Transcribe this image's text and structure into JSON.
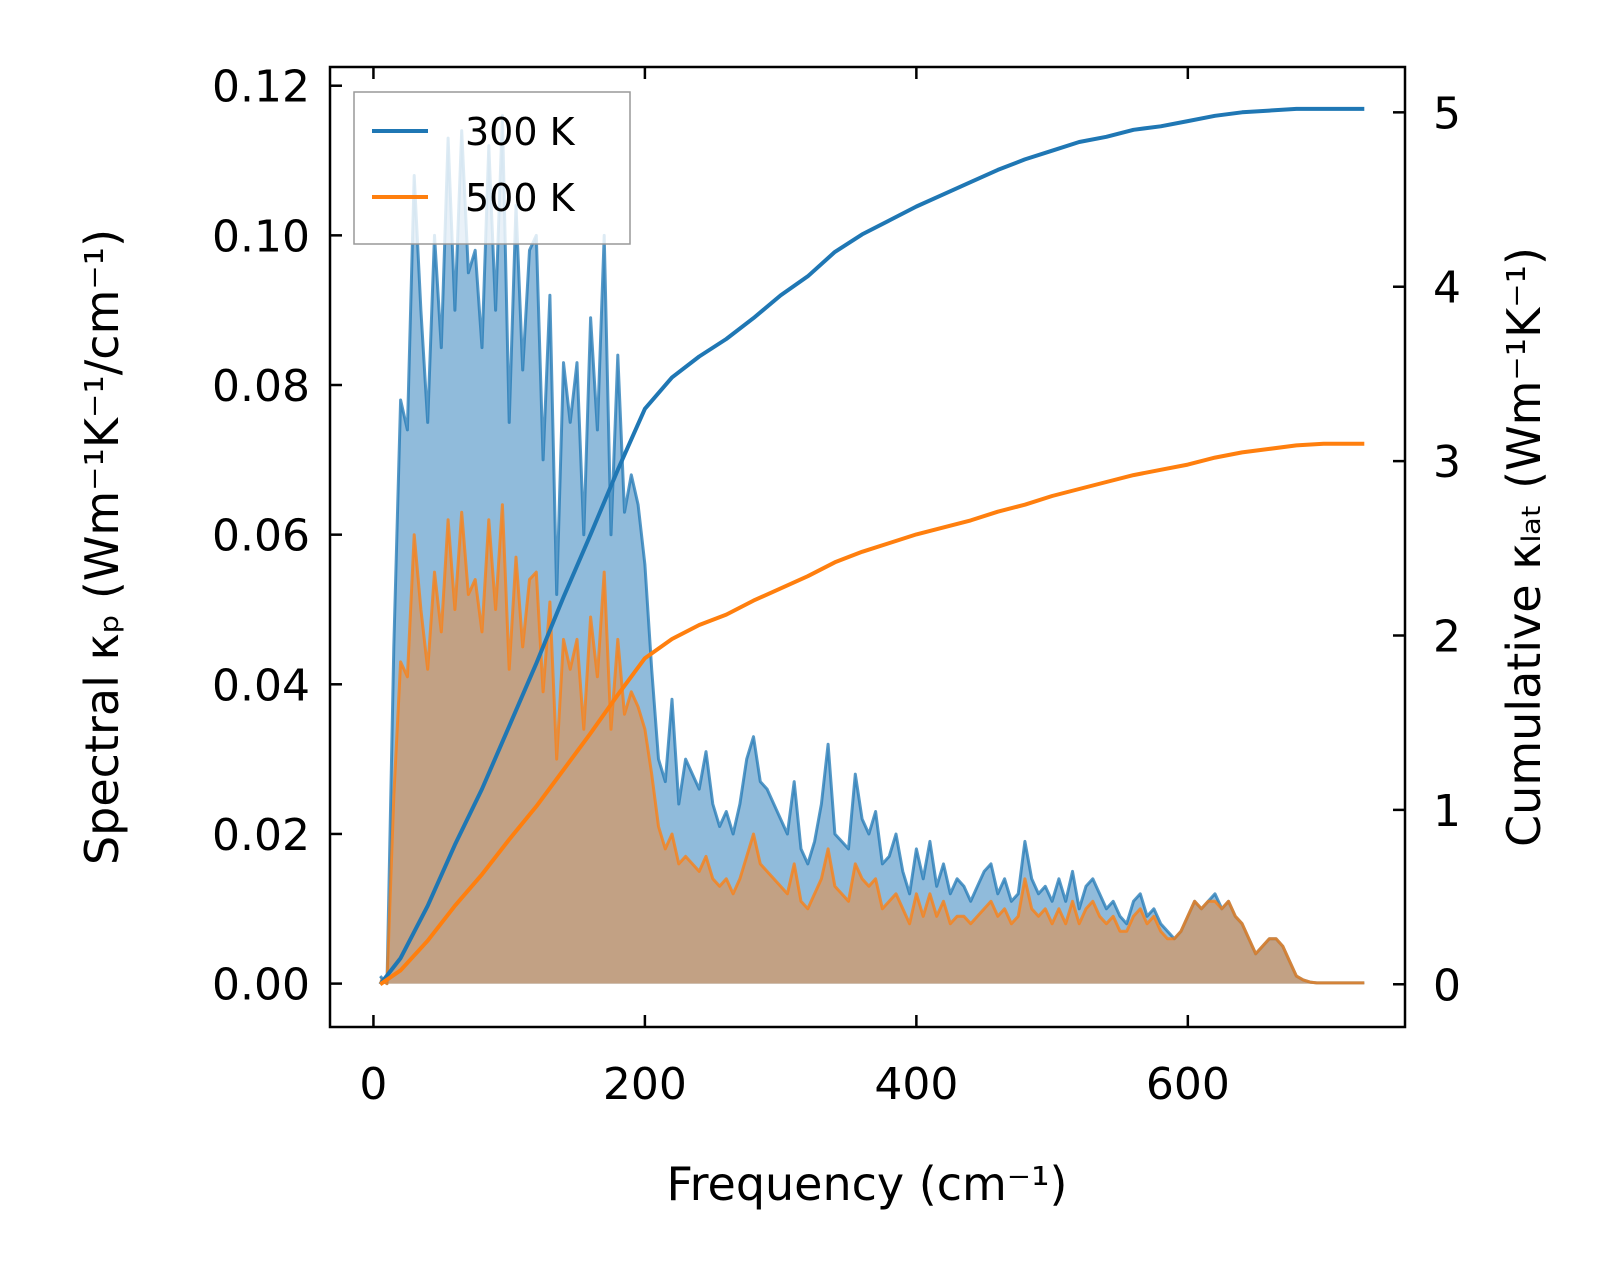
{
  "chart_data": {
    "type": "line",
    "xlabel": "Frequency (cm⁻¹)",
    "ylabel_left": "Spectral κₚ (Wm⁻¹K⁻¹/cm⁻¹)",
    "ylabel_right": "Cumulative κₗₐₜ (Wm⁻¹K⁻¹)",
    "xlim": [
      -32,
      760
    ],
    "ylim_left": [
      -0.0058,
      0.1225
    ],
    "ylim_right": [
      -0.245,
      5.26
    ],
    "x_ticks": [
      0,
      200,
      400,
      600
    ],
    "x_tick_labels": [
      "0",
      "200",
      "400",
      "600"
    ],
    "y_left_ticks": [
      0,
      0.02,
      0.04,
      0.06,
      0.08,
      0.1,
      0.12
    ],
    "y_left_tick_labels": [
      "0.00",
      "0.02",
      "0.04",
      "0.06",
      "0.08",
      "0.10",
      "0.12"
    ],
    "y_right_ticks": [
      0,
      1,
      2,
      3,
      4,
      5
    ],
    "y_right_tick_labels": [
      "0",
      "1",
      "2",
      "3",
      "4",
      "5"
    ],
    "legend": {
      "position": "upper-left",
      "entries": [
        "300 K",
        "500 K"
      ]
    },
    "colors": {
      "300K": "#1f77b4",
      "500K": "#ff7f0e",
      "fill_300K": "#8ab7d9",
      "fill_500K": "#c89f7a"
    },
    "series": [
      {
        "name": "300 K",
        "kind": "spectral",
        "x": [
          5,
          10,
          15,
          20,
          25,
          30,
          35,
          40,
          45,
          50,
          55,
          60,
          65,
          70,
          75,
          80,
          85,
          90,
          95,
          100,
          105,
          110,
          115,
          120,
          125,
          130,
          135,
          140,
          145,
          150,
          155,
          160,
          165,
          170,
          175,
          180,
          185,
          190,
          195,
          200,
          205,
          210,
          215,
          220,
          225,
          230,
          235,
          240,
          245,
          250,
          255,
          260,
          265,
          270,
          275,
          280,
          285,
          290,
          295,
          300,
          305,
          310,
          315,
          320,
          325,
          330,
          335,
          340,
          345,
          350,
          355,
          360,
          365,
          370,
          375,
          380,
          385,
          390,
          395,
          400,
          405,
          410,
          415,
          420,
          425,
          430,
          435,
          440,
          445,
          450,
          455,
          460,
          465,
          470,
          475,
          480,
          485,
          490,
          495,
          500,
          505,
          510,
          515,
          520,
          525,
          530,
          535,
          540,
          545,
          550,
          555,
          560,
          565,
          570,
          575,
          580,
          585,
          590,
          595,
          600,
          605,
          610,
          615,
          620,
          625,
          630,
          635,
          640,
          645,
          650,
          655,
          660,
          665,
          670,
          675,
          680,
          685,
          690,
          695,
          700,
          705,
          710,
          715,
          720,
          725,
          730
        ],
        "values": [
          0.001,
          0.0,
          0.045,
          0.078,
          0.074,
          0.108,
          0.09,
          0.075,
          0.1,
          0.085,
          0.113,
          0.09,
          0.114,
          0.095,
          0.098,
          0.085,
          0.112,
          0.09,
          0.116,
          0.075,
          0.104,
          0.082,
          0.098,
          0.1,
          0.07,
          0.092,
          0.052,
          0.083,
          0.075,
          0.083,
          0.06,
          0.089,
          0.074,
          0.1,
          0.06,
          0.084,
          0.063,
          0.068,
          0.064,
          0.056,
          0.042,
          0.03,
          0.027,
          0.038,
          0.024,
          0.03,
          0.028,
          0.026,
          0.031,
          0.024,
          0.021,
          0.023,
          0.02,
          0.024,
          0.03,
          0.033,
          0.027,
          0.026,
          0.024,
          0.022,
          0.02,
          0.027,
          0.018,
          0.016,
          0.019,
          0.024,
          0.032,
          0.02,
          0.019,
          0.018,
          0.028,
          0.022,
          0.02,
          0.023,
          0.016,
          0.017,
          0.02,
          0.015,
          0.012,
          0.018,
          0.014,
          0.019,
          0.013,
          0.016,
          0.012,
          0.014,
          0.013,
          0.011,
          0.013,
          0.015,
          0.016,
          0.012,
          0.014,
          0.011,
          0.012,
          0.019,
          0.014,
          0.012,
          0.013,
          0.011,
          0.014,
          0.011,
          0.015,
          0.01,
          0.013,
          0.014,
          0.012,
          0.01,
          0.011,
          0.009,
          0.008,
          0.011,
          0.012,
          0.009,
          0.01,
          0.008,
          0.007,
          0.006,
          0.007,
          0.009,
          0.011,
          0.01,
          0.011,
          0.012,
          0.01,
          0.011,
          0.009,
          0.008,
          0.006,
          0.004,
          0.005,
          0.006,
          0.006,
          0.005,
          0.003,
          0.001,
          0.0005,
          0.0002,
          0.0001,
          0.0001,
          0.0001,
          0.0001,
          0.0001,
          0.0001,
          0.0001,
          0.0001
        ]
      },
      {
        "name": "500 K",
        "kind": "spectral",
        "x": [
          5,
          10,
          15,
          20,
          25,
          30,
          35,
          40,
          45,
          50,
          55,
          60,
          65,
          70,
          75,
          80,
          85,
          90,
          95,
          100,
          105,
          110,
          115,
          120,
          125,
          130,
          135,
          140,
          145,
          150,
          155,
          160,
          165,
          170,
          175,
          180,
          185,
          190,
          195,
          200,
          205,
          210,
          215,
          220,
          225,
          230,
          235,
          240,
          245,
          250,
          255,
          260,
          265,
          270,
          275,
          280,
          285,
          290,
          295,
          300,
          305,
          310,
          315,
          320,
          325,
          330,
          335,
          340,
          345,
          350,
          355,
          360,
          365,
          370,
          375,
          380,
          385,
          390,
          395,
          400,
          405,
          410,
          415,
          420,
          425,
          430,
          435,
          440,
          445,
          450,
          455,
          460,
          465,
          470,
          475,
          480,
          485,
          490,
          495,
          500,
          505,
          510,
          515,
          520,
          525,
          530,
          535,
          540,
          545,
          550,
          555,
          560,
          565,
          570,
          575,
          580,
          585,
          590,
          595,
          600,
          605,
          610,
          615,
          620,
          625,
          630,
          635,
          640,
          645,
          650,
          655,
          660,
          665,
          670,
          675,
          680,
          685,
          690,
          695,
          700,
          705,
          710,
          715,
          720,
          725,
          730
        ],
        "values": [
          0.0005,
          0.0,
          0.025,
          0.043,
          0.041,
          0.06,
          0.05,
          0.042,
          0.055,
          0.047,
          0.062,
          0.05,
          0.063,
          0.052,
          0.054,
          0.047,
          0.062,
          0.05,
          0.064,
          0.042,
          0.057,
          0.045,
          0.054,
          0.055,
          0.039,
          0.051,
          0.03,
          0.046,
          0.042,
          0.046,
          0.034,
          0.049,
          0.041,
          0.055,
          0.034,
          0.046,
          0.036,
          0.039,
          0.037,
          0.034,
          0.028,
          0.021,
          0.018,
          0.02,
          0.016,
          0.017,
          0.016,
          0.015,
          0.017,
          0.014,
          0.013,
          0.014,
          0.012,
          0.014,
          0.017,
          0.02,
          0.016,
          0.015,
          0.014,
          0.013,
          0.012,
          0.016,
          0.011,
          0.01,
          0.012,
          0.014,
          0.018,
          0.013,
          0.012,
          0.011,
          0.016,
          0.014,
          0.013,
          0.014,
          0.01,
          0.011,
          0.012,
          0.01,
          0.008,
          0.012,
          0.009,
          0.012,
          0.009,
          0.011,
          0.008,
          0.009,
          0.009,
          0.008,
          0.009,
          0.01,
          0.011,
          0.009,
          0.01,
          0.008,
          0.009,
          0.014,
          0.01,
          0.009,
          0.01,
          0.008,
          0.01,
          0.008,
          0.011,
          0.008,
          0.01,
          0.011,
          0.009,
          0.008,
          0.009,
          0.007,
          0.007,
          0.009,
          0.01,
          0.008,
          0.009,
          0.007,
          0.006,
          0.006,
          0.007,
          0.009,
          0.011,
          0.01,
          0.011,
          0.011,
          0.01,
          0.011,
          0.009,
          0.008,
          0.006,
          0.004,
          0.005,
          0.006,
          0.006,
          0.005,
          0.003,
          0.001,
          0.0005,
          0.0002,
          0.0001,
          0.0001,
          0.0001,
          0.0001,
          0.0001,
          0.0001,
          0.0001,
          0.0001
        ]
      },
      {
        "name": "300 K",
        "kind": "cumulative",
        "x": [
          5,
          20,
          40,
          60,
          80,
          100,
          120,
          140,
          160,
          180,
          200,
          220,
          240,
          260,
          280,
          300,
          320,
          340,
          360,
          380,
          400,
          420,
          440,
          460,
          480,
          500,
          520,
          540,
          560,
          580,
          600,
          620,
          640,
          660,
          680,
          700,
          730
        ],
        "values": [
          0.0,
          0.15,
          0.45,
          0.8,
          1.12,
          1.48,
          1.84,
          2.22,
          2.58,
          2.95,
          3.3,
          3.48,
          3.6,
          3.7,
          3.82,
          3.95,
          4.06,
          4.2,
          4.3,
          4.38,
          4.46,
          4.53,
          4.6,
          4.67,
          4.73,
          4.78,
          4.83,
          4.86,
          4.9,
          4.92,
          4.95,
          4.98,
          5.0,
          5.01,
          5.02,
          5.02,
          5.02
        ]
      },
      {
        "name": "500 K",
        "kind": "cumulative",
        "x": [
          5,
          20,
          40,
          60,
          80,
          100,
          120,
          140,
          160,
          180,
          200,
          220,
          240,
          260,
          280,
          300,
          320,
          340,
          360,
          380,
          400,
          420,
          440,
          460,
          480,
          500,
          520,
          540,
          560,
          580,
          600,
          620,
          640,
          660,
          680,
          700,
          730
        ],
        "values": [
          0.0,
          0.08,
          0.25,
          0.45,
          0.63,
          0.83,
          1.02,
          1.23,
          1.44,
          1.66,
          1.87,
          1.98,
          2.06,
          2.12,
          2.2,
          2.27,
          2.34,
          2.42,
          2.48,
          2.53,
          2.58,
          2.62,
          2.66,
          2.71,
          2.75,
          2.8,
          2.84,
          2.88,
          2.92,
          2.95,
          2.98,
          3.02,
          3.05,
          3.07,
          3.09,
          3.1,
          3.1
        ]
      }
    ]
  }
}
